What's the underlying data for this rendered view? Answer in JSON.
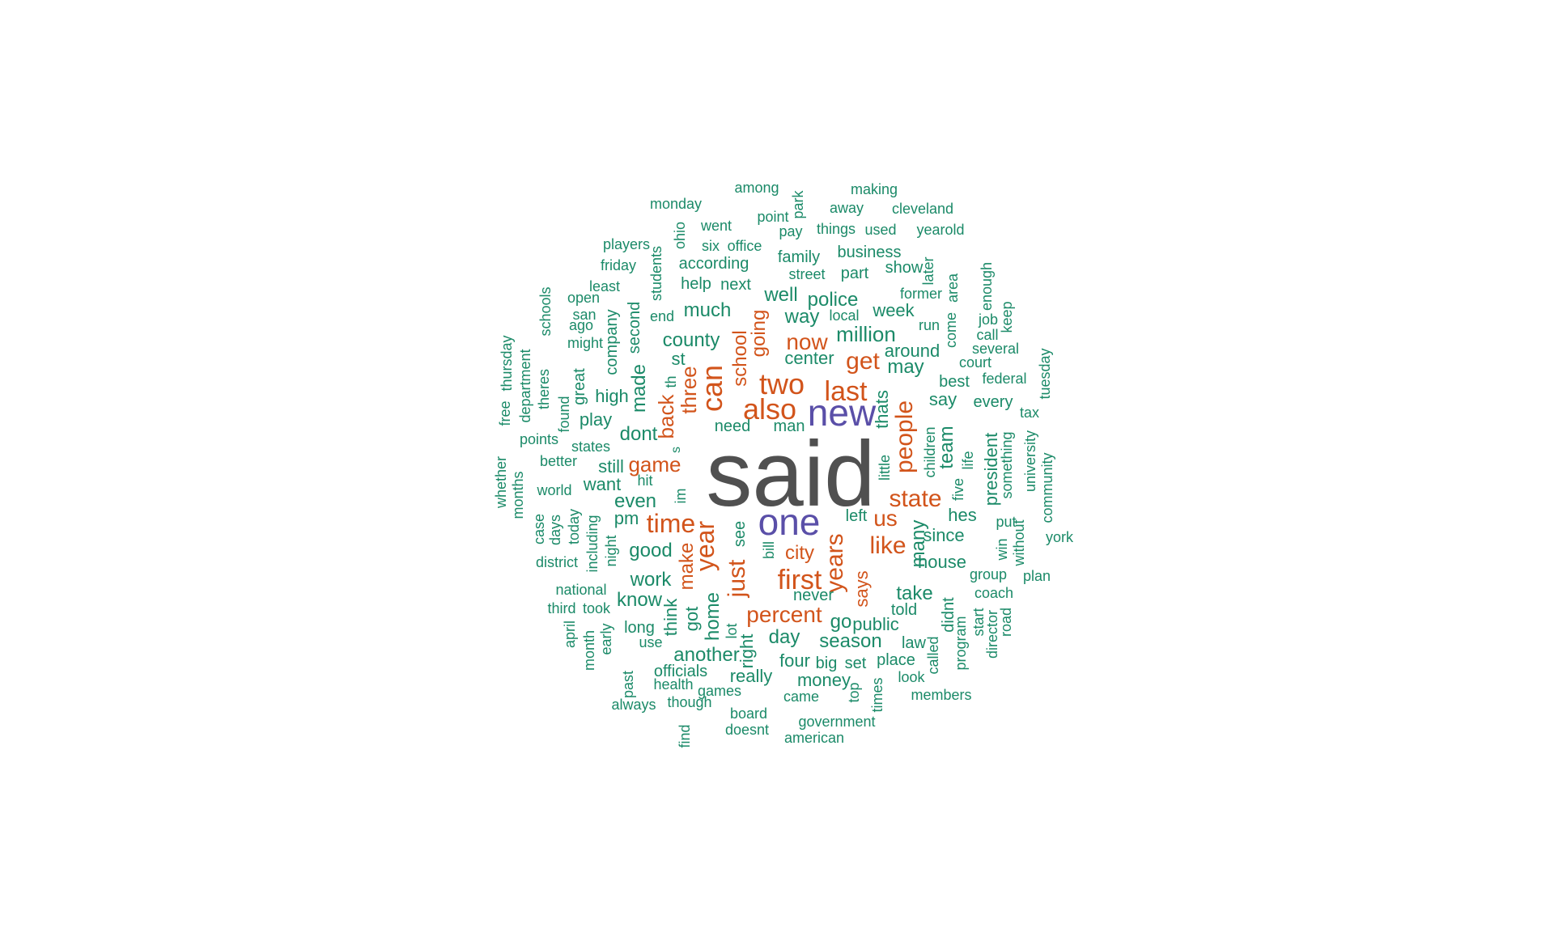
{
  "colors": {
    "gray": "#505050",
    "purple": "#5a4fa8",
    "orange": "#d2541b",
    "green": "#1b8a68"
  },
  "words": [
    {
      "text": "said",
      "color": "gray"
    },
    {
      "text": "new",
      "color": "purple"
    },
    {
      "text": "one",
      "color": "purple"
    },
    {
      "text": "also",
      "color": "orange"
    },
    {
      "text": "two",
      "color": "orange"
    },
    {
      "text": "can",
      "color": "orange"
    },
    {
      "text": "last",
      "color": "orange"
    },
    {
      "text": "time",
      "color": "orange"
    },
    {
      "text": "first",
      "color": "orange"
    },
    {
      "text": "years",
      "color": "orange"
    },
    {
      "text": "year",
      "color": "orange"
    },
    {
      "text": "just",
      "color": "orange"
    },
    {
      "text": "like",
      "color": "orange"
    },
    {
      "text": "state",
      "color": "orange"
    },
    {
      "text": "people",
      "color": "orange"
    },
    {
      "text": "get",
      "color": "orange"
    },
    {
      "text": "now",
      "color": "orange"
    },
    {
      "text": "percent",
      "color": "orange"
    },
    {
      "text": "us",
      "color": "orange"
    },
    {
      "text": "game",
      "color": "orange"
    },
    {
      "text": "three",
      "color": "orange"
    },
    {
      "text": "back",
      "color": "orange"
    },
    {
      "text": "make",
      "color": "orange"
    },
    {
      "text": "school",
      "color": "orange"
    },
    {
      "text": "going",
      "color": "orange"
    },
    {
      "text": "says",
      "color": "orange"
    },
    {
      "text": "city",
      "color": "orange"
    },
    {
      "text": "million",
      "color": "green"
    },
    {
      "text": "county",
      "color": "green"
    },
    {
      "text": "much",
      "color": "green"
    },
    {
      "text": "police",
      "color": "green"
    },
    {
      "text": "way",
      "color": "green"
    },
    {
      "text": "well",
      "color": "green"
    },
    {
      "text": "week",
      "color": "green"
    },
    {
      "text": "may",
      "color": "green"
    },
    {
      "text": "around",
      "color": "green"
    },
    {
      "text": "thats",
      "color": "green"
    },
    {
      "text": "team",
      "color": "green"
    },
    {
      "text": "many",
      "color": "green"
    },
    {
      "text": "good",
      "color": "green"
    },
    {
      "text": "even",
      "color": "green"
    },
    {
      "text": "dont",
      "color": "green"
    },
    {
      "text": "made",
      "color": "green"
    },
    {
      "text": "work",
      "color": "green"
    },
    {
      "text": "know",
      "color": "green"
    },
    {
      "text": "take",
      "color": "green"
    },
    {
      "text": "day",
      "color": "green"
    },
    {
      "text": "season",
      "color": "green"
    },
    {
      "text": "another",
      "color": "green"
    },
    {
      "text": "home",
      "color": "green"
    },
    {
      "text": "go",
      "color": "green"
    },
    {
      "text": "public",
      "color": "green"
    },
    {
      "text": "since",
      "color": "green"
    },
    {
      "text": "house",
      "color": "green"
    },
    {
      "text": "say",
      "color": "green"
    },
    {
      "text": "best",
      "color": "green"
    },
    {
      "text": "high",
      "color": "green"
    },
    {
      "text": "still",
      "color": "green"
    },
    {
      "text": "want",
      "color": "green"
    },
    {
      "text": "pm",
      "color": "green"
    },
    {
      "text": "think",
      "color": "green"
    },
    {
      "text": "got",
      "color": "green"
    },
    {
      "text": "right",
      "color": "green"
    },
    {
      "text": "four",
      "color": "green"
    },
    {
      "text": "place",
      "color": "green"
    },
    {
      "text": "big",
      "color": "green"
    },
    {
      "text": "set",
      "color": "green"
    },
    {
      "text": "center",
      "color": "green"
    },
    {
      "text": "st",
      "color": "green"
    },
    {
      "text": "second",
      "color": "green"
    },
    {
      "text": "company",
      "color": "green"
    },
    {
      "text": "great",
      "color": "green"
    },
    {
      "text": "play",
      "color": "green"
    },
    {
      "text": "need",
      "color": "green"
    },
    {
      "text": "man",
      "color": "green"
    },
    {
      "text": "every",
      "color": "green"
    },
    {
      "text": "president",
      "color": "green"
    },
    {
      "text": "hes",
      "color": "green"
    },
    {
      "text": "left",
      "color": "green"
    },
    {
      "text": "see",
      "color": "green"
    },
    {
      "text": "never",
      "color": "green"
    },
    {
      "text": "told",
      "color": "green"
    },
    {
      "text": "didnt",
      "color": "green"
    },
    {
      "text": "law",
      "color": "green"
    },
    {
      "text": "really",
      "color": "green"
    },
    {
      "text": "money",
      "color": "green"
    },
    {
      "text": "long",
      "color": "green"
    },
    {
      "text": "officials",
      "color": "green"
    },
    {
      "text": "family",
      "color": "green"
    },
    {
      "text": "business",
      "color": "green"
    },
    {
      "text": "according",
      "color": "green"
    },
    {
      "text": "help",
      "color": "green"
    },
    {
      "text": "next",
      "color": "green"
    },
    {
      "text": "part",
      "color": "green"
    },
    {
      "text": "show",
      "color": "green"
    },
    {
      "text": "former",
      "color": "green"
    },
    {
      "text": "local",
      "color": "green"
    },
    {
      "text": "run",
      "color": "green"
    },
    {
      "text": "court",
      "color": "green"
    },
    {
      "text": "several",
      "color": "green"
    },
    {
      "text": "federal",
      "color": "green"
    },
    {
      "text": "group",
      "color": "green"
    },
    {
      "text": "coach",
      "color": "green"
    },
    {
      "text": "among",
      "color": "green"
    },
    {
      "text": "making",
      "color": "green"
    },
    {
      "text": "monday",
      "color": "green"
    },
    {
      "text": "point",
      "color": "green"
    },
    {
      "text": "away",
      "color": "green"
    },
    {
      "text": "cleveland",
      "color": "green"
    },
    {
      "text": "pay",
      "color": "green"
    },
    {
      "text": "things",
      "color": "green"
    },
    {
      "text": "used",
      "color": "green"
    },
    {
      "text": "yearold",
      "color": "green"
    },
    {
      "text": "went",
      "color": "green"
    },
    {
      "text": "six",
      "color": "green"
    },
    {
      "text": "office",
      "color": "green"
    },
    {
      "text": "players",
      "color": "green"
    },
    {
      "text": "friday",
      "color": "green"
    },
    {
      "text": "street",
      "color": "green"
    },
    {
      "text": "least",
      "color": "green"
    },
    {
      "text": "open",
      "color": "green"
    },
    {
      "text": "san",
      "color": "green"
    },
    {
      "text": "ago",
      "color": "green"
    },
    {
      "text": "might",
      "color": "green"
    },
    {
      "text": "end",
      "color": "green"
    },
    {
      "text": "job",
      "color": "green"
    },
    {
      "text": "call",
      "color": "green"
    },
    {
      "text": "th",
      "color": "green"
    },
    {
      "text": "found",
      "color": "green"
    },
    {
      "text": "points",
      "color": "green"
    },
    {
      "text": "states",
      "color": "green"
    },
    {
      "text": "better",
      "color": "green"
    },
    {
      "text": "world",
      "color": "green"
    },
    {
      "text": "hit",
      "color": "green"
    },
    {
      "text": "im",
      "color": "green"
    },
    {
      "text": "s",
      "color": "green"
    },
    {
      "text": "tax",
      "color": "green"
    },
    {
      "text": "put",
      "color": "green"
    },
    {
      "text": "win",
      "color": "green"
    },
    {
      "text": "york",
      "color": "green"
    },
    {
      "text": "plan",
      "color": "green"
    },
    {
      "text": "district",
      "color": "green"
    },
    {
      "text": "national",
      "color": "green"
    },
    {
      "text": "third",
      "color": "green"
    },
    {
      "text": "took",
      "color": "green"
    },
    {
      "text": "use",
      "color": "green"
    },
    {
      "text": "lot",
      "color": "green"
    },
    {
      "text": "health",
      "color": "green"
    },
    {
      "text": "games",
      "color": "green"
    },
    {
      "text": "came",
      "color": "green"
    },
    {
      "text": "look",
      "color": "green"
    },
    {
      "text": "members",
      "color": "green"
    },
    {
      "text": "always",
      "color": "green"
    },
    {
      "text": "though",
      "color": "green"
    },
    {
      "text": "board",
      "color": "green"
    },
    {
      "text": "government",
      "color": "green"
    },
    {
      "text": "doesnt",
      "color": "green"
    },
    {
      "text": "american",
      "color": "green"
    },
    {
      "text": "case",
      "color": "green"
    },
    {
      "text": "days",
      "color": "green"
    },
    {
      "text": "today",
      "color": "green"
    },
    {
      "text": "night",
      "color": "green"
    },
    {
      "text": "including",
      "color": "green"
    },
    {
      "text": "park",
      "color": "green"
    },
    {
      "text": "ohio",
      "color": "green"
    },
    {
      "text": "students",
      "color": "green"
    },
    {
      "text": "later",
      "color": "green"
    },
    {
      "text": "area",
      "color": "green"
    },
    {
      "text": "enough",
      "color": "green"
    },
    {
      "text": "keep",
      "color": "green"
    },
    {
      "text": "come",
      "color": "green"
    },
    {
      "text": "schools",
      "color": "green"
    },
    {
      "text": "free",
      "color": "green"
    },
    {
      "text": "thursday",
      "color": "green"
    },
    {
      "text": "department",
      "color": "green"
    },
    {
      "text": "theres",
      "color": "green"
    },
    {
      "text": "whether",
      "color": "green"
    },
    {
      "text": "months",
      "color": "green"
    },
    {
      "text": "tuesday",
      "color": "green"
    },
    {
      "text": "university",
      "color": "green"
    },
    {
      "text": "community",
      "color": "green"
    },
    {
      "text": "without",
      "color": "green"
    },
    {
      "text": "something",
      "color": "green"
    },
    {
      "text": "life",
      "color": "green"
    },
    {
      "text": "five",
      "color": "green"
    },
    {
      "text": "children",
      "color": "green"
    },
    {
      "text": "little",
      "color": "green"
    },
    {
      "text": "bill",
      "color": "green"
    },
    {
      "text": "april",
      "color": "green"
    },
    {
      "text": "month",
      "color": "green"
    },
    {
      "text": "early",
      "color": "green"
    },
    {
      "text": "past",
      "color": "green"
    },
    {
      "text": "find",
      "color": "green"
    },
    {
      "text": "top",
      "color": "green"
    },
    {
      "text": "times",
      "color": "green"
    },
    {
      "text": "called",
      "color": "green"
    },
    {
      "text": "program",
      "color": "green"
    },
    {
      "text": "start",
      "color": "green"
    },
    {
      "text": "director",
      "color": "green"
    },
    {
      "text": "road",
      "color": "green"
    }
  ]
}
